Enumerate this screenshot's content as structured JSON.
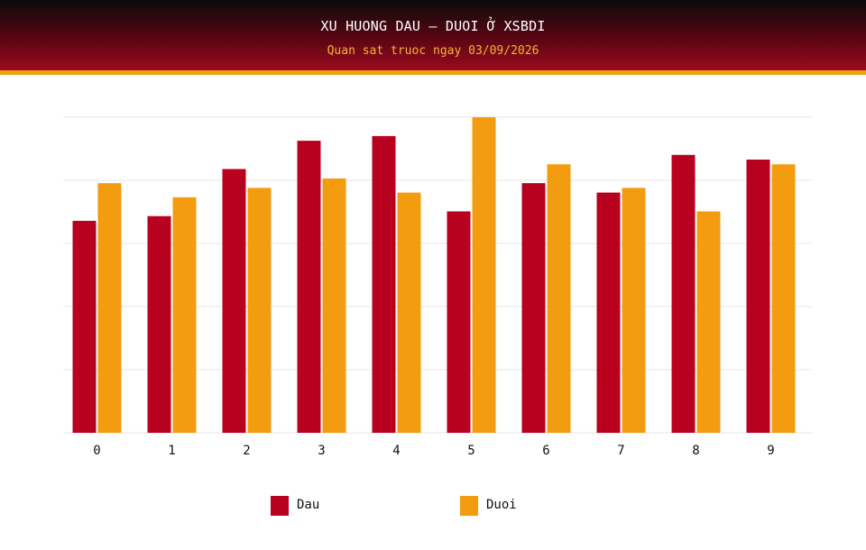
{
  "header": {
    "title": "XU HUONG DAU – DUOI Ở XSBDI",
    "subtitle": "Quan sat truoc ngay 03/09/2026"
  },
  "colors": {
    "dau": "#b8001f",
    "duoi": "#f39c0f",
    "grid": "#e6e6e6"
  },
  "chart_data": {
    "type": "bar",
    "categories": [
      "0",
      "1",
      "2",
      "3",
      "4",
      "5",
      "6",
      "7",
      "8",
      "9"
    ],
    "series": [
      {
        "name": "Dau",
        "values": [
          45,
          46,
          56,
          62,
          63,
          47,
          53,
          51,
          59,
          58
        ]
      },
      {
        "name": "Duoi",
        "values": [
          53,
          50,
          52,
          54,
          51,
          67,
          57,
          52,
          47,
          57
        ]
      }
    ],
    "ylim": [
      0,
      67
    ],
    "grid": true,
    "legend_position": "bottom-center"
  }
}
